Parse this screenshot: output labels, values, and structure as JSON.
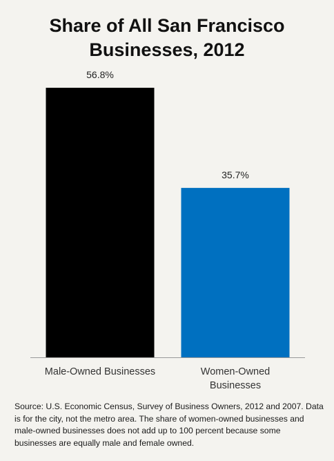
{
  "chart_data": {
    "type": "bar",
    "title": "Share of All San Francisco Businesses, 2012",
    "categories": [
      "Male-Owned Businesses",
      "Women-Owned Businesses"
    ],
    "values": [
      56.8,
      35.7
    ],
    "value_labels": [
      "56.8%",
      "35.7%"
    ],
    "ylim": [
      0,
      60
    ],
    "grid": false,
    "legend": "none",
    "colors": [
      "#000000",
      "#0070c0"
    ]
  },
  "source_note": "Source: U.S. Economic Census, Survey of Business Owners, 2012 and 2007. Data is for the city, not the metro area. The share of women-owned businesses and male-owned businesses does not add up to 100 percent because some businesses are equally male and female owned.",
  "colors": {
    "background": "#f4f3ef",
    "axis": "#999999"
  }
}
